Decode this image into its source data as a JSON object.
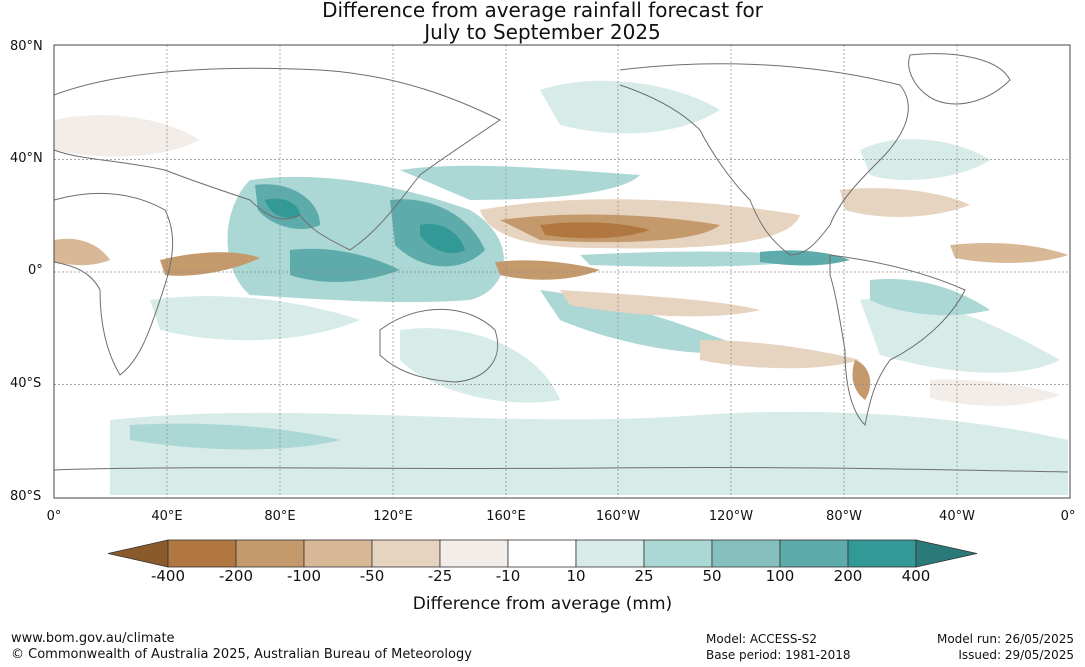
{
  "title": {
    "line1": "Difference from average rainfall forecast for",
    "line2": "July to September 2025"
  },
  "map": {
    "lat_labels": [
      "80°N",
      "40°N",
      "0°",
      "40°S",
      "80°S"
    ],
    "lon_labels": [
      "0°",
      "40°E",
      "80°E",
      "120°E",
      "160°E",
      "160°W",
      "120°W",
      "80°W",
      "40°W",
      "0°"
    ]
  },
  "colorbar": {
    "label": "Difference from average (mm)",
    "ticks": [
      "-400",
      "-200",
      "-100",
      "-50",
      "-25",
      "-10",
      "10",
      "25",
      "50",
      "100",
      "200",
      "400"
    ],
    "colors": [
      "#8b5a2b",
      "#b07840",
      "#c49a6c",
      "#d8b896",
      "#e6d3c0",
      "#f2ede8",
      "#ffffff",
      "#d7ebe9",
      "#abd7d5",
      "#85c0bf",
      "#5eabab",
      "#329996",
      "#2a7a7a"
    ]
  },
  "footer": {
    "website": "www.bom.gov.au/climate",
    "copyright": "© Commonwealth of Australia 2025, Australian Bureau of Meteorology",
    "model": "Model: ACCESS-S2",
    "base_period": "Base period: 1981-2018",
    "model_run": "Model run: 26/05/2025",
    "issued": "Issued: 29/05/2025"
  }
}
